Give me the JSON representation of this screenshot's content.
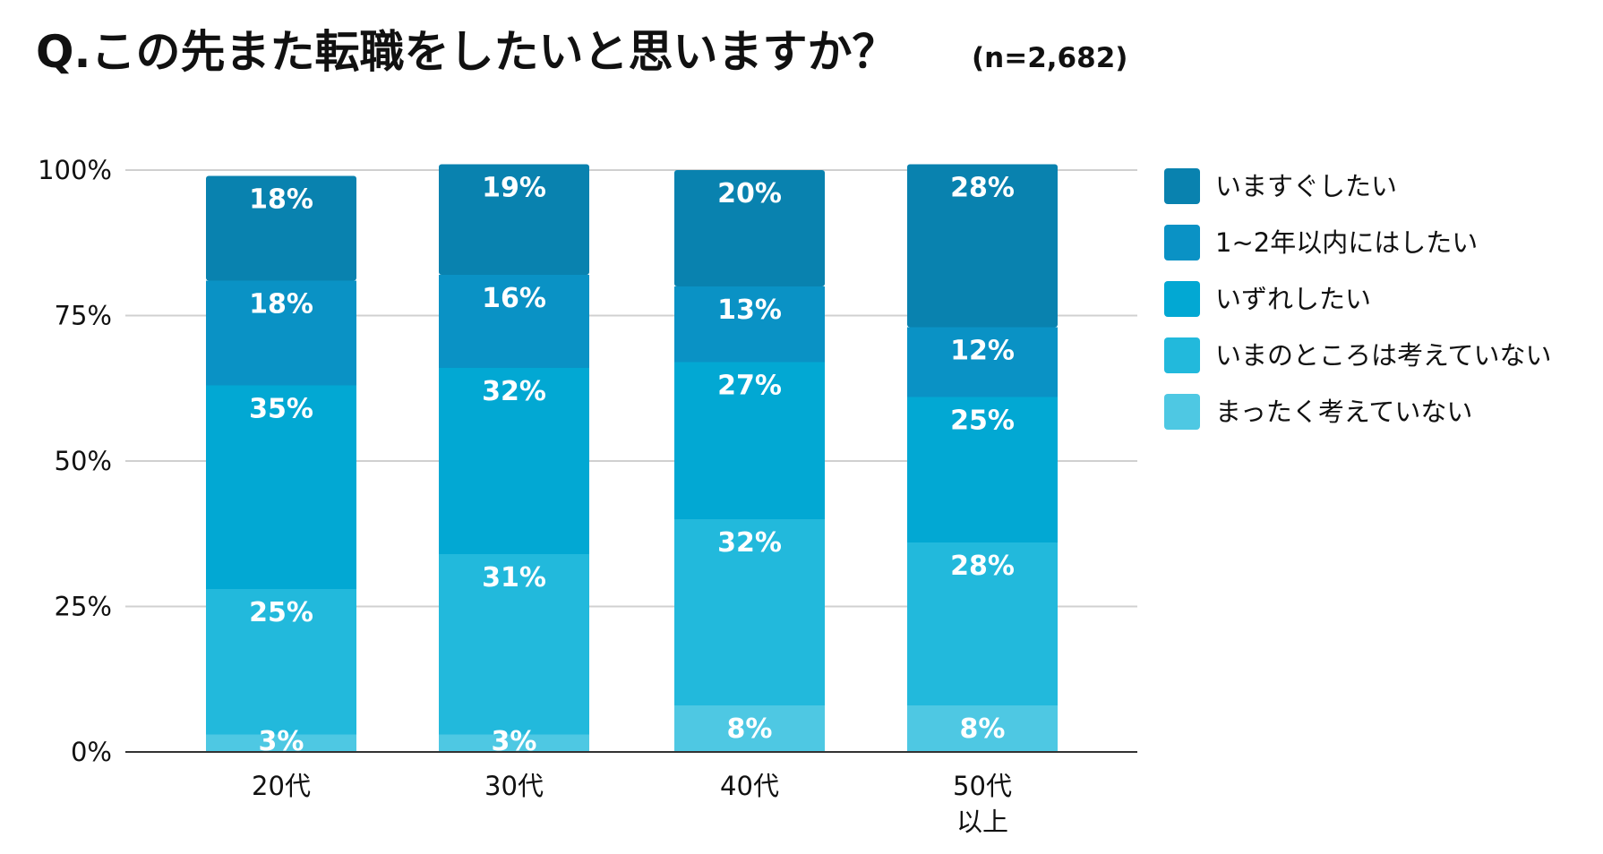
{
  "chart_data": {
    "type": "bar",
    "stacked": true,
    "title": "Q.この先また転職をしたいと思いますか？",
    "subtitle": "(n=2,682)",
    "categories": [
      [
        "20代"
      ],
      [
        "30代"
      ],
      [
        "40代"
      ],
      [
        "50代",
        "以上"
      ]
    ],
    "ylim": [
      0,
      100
    ],
    "y_ticks": [
      "0%",
      "25%",
      "50%",
      "75%",
      "100%"
    ],
    "grid": true,
    "legend_position": "right",
    "series": [
      {
        "name": "まったく考えていない",
        "color": "#4ec8e3",
        "values": [
          3,
          3,
          8,
          8
        ],
        "labels": [
          "3%",
          "3%",
          "8%",
          "8%"
        ]
      },
      {
        "name": "いまのところは考えていない",
        "color": "#22b9dc",
        "values": [
          25,
          31,
          32,
          28
        ],
        "labels": [
          "25%",
          "31%",
          "32%",
          "28%"
        ]
      },
      {
        "name": "いずれしたい",
        "color": "#02a8d3",
        "values": [
          35,
          32,
          27,
          25
        ],
        "labels": [
          "35%",
          "32%",
          "27%",
          "25%"
        ]
      },
      {
        "name": "1~2年以内にはしたい",
        "color": "#0a92c5",
        "values": [
          18,
          16,
          13,
          12
        ],
        "labels": [
          "18%",
          "16%",
          "13%",
          "12%"
        ]
      },
      {
        "name": "いますぐしたい",
        "color": "#0982af",
        "values": [
          18,
          19,
          20,
          28
        ],
        "labels": [
          "18%",
          "19%",
          "20%",
          "28%"
        ]
      }
    ]
  }
}
